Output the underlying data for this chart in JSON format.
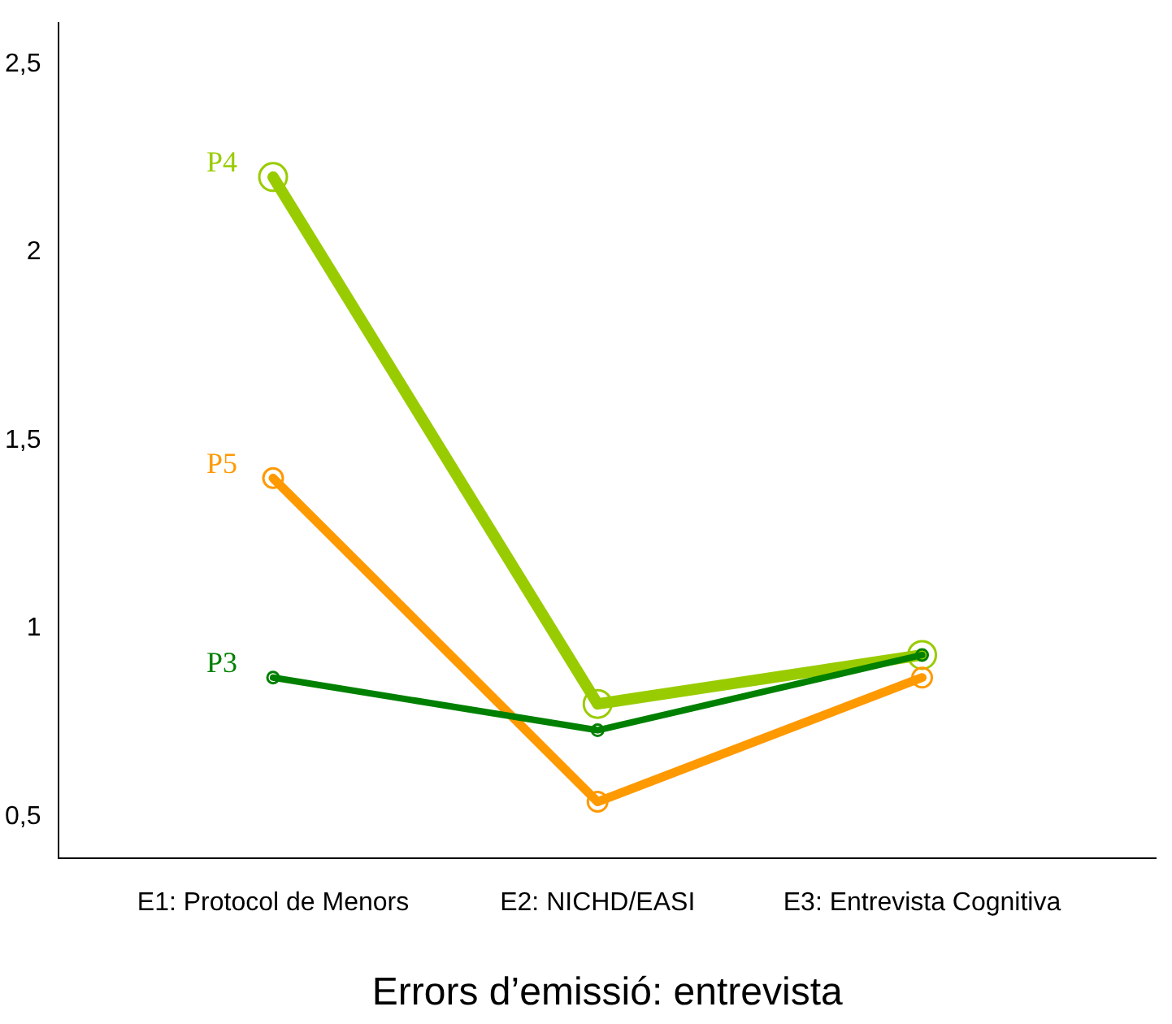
{
  "chart_data": {
    "type": "line",
    "xlabel": "Errors d’emissió: entrevista",
    "categories": [
      "E1: Protocol de Menors",
      "E2: NICHD/EASI",
      "E3: Entrevista Cognitiva"
    ],
    "series": [
      {
        "name": "P4",
        "color": "#99cc00",
        "values": [
          2.2,
          0.8,
          0.93
        ]
      },
      {
        "name": "P5",
        "color": "#ff9900",
        "values": [
          1.4,
          0.54,
          0.87
        ]
      },
      {
        "name": "P3",
        "color": "#008000",
        "values": [
          0.87,
          0.73,
          0.93
        ]
      }
    ],
    "ylim": [
      0.39,
      2.61
    ],
    "yticks": [
      {
        "value": 0.5,
        "label": "0,5"
      },
      {
        "value": 1,
        "label": "1"
      },
      {
        "value": 1.5,
        "label": "1,5"
      },
      {
        "value": 2,
        "label": "2"
      },
      {
        "value": 2.5,
        "label": "2,5"
      }
    ],
    "grid": false,
    "legend": false,
    "marker": "circle",
    "line_style": "solid"
  }
}
